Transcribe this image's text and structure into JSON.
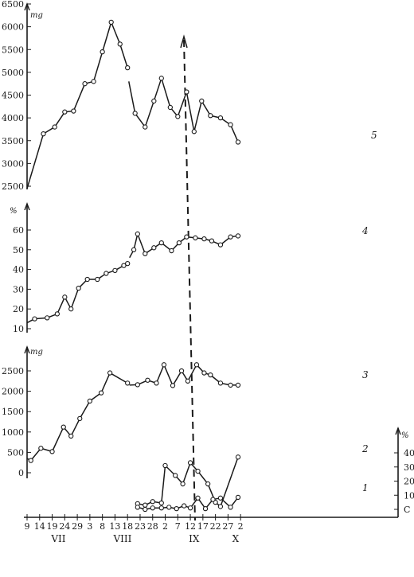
{
  "chart_data": {
    "type": "line",
    "x_axis": {
      "day_ticks": [
        "9",
        "14",
        "19",
        "24",
        "29",
        "3",
        "8",
        "13",
        "18",
        "23",
        "28",
        "2",
        "7",
        "12",
        "17",
        "22",
        "27",
        "2"
      ],
      "month_labels": [
        "VII",
        "VIII",
        "IX",
        "X"
      ]
    },
    "panels": [
      {
        "id": "p5",
        "unit": "mg",
        "ylim": [
          2500,
          6500
        ],
        "yticks": [
          2500,
          3000,
          3500,
          4000,
          4500,
          5000,
          5500,
          6000,
          6500
        ],
        "ytick_labels": [
          "2500",
          "3000",
          "3500",
          "4000",
          "4500",
          "5000",
          "5500",
          "6000",
          "6500"
        ],
        "series": [
          {
            "name": "5",
            "segments": [
              {
                "x": [
                  9,
                  15.5,
                  20,
                  24,
                  27.5,
                  32,
                  35.5,
                  39,
                  42.5,
                  46,
                  49
                ],
                "y": [
                  2450,
                  3650,
                  3800,
                  4130,
                  4150,
                  4750,
                  4800,
                  5450,
                  6100,
                  5620,
                  5100
                ],
                "markers_from": 1,
                "ends_open": true
              },
              {
                "x": [
                  49.5,
                  52,
                  56,
                  59.5,
                  62.5,
                  66,
                  69,
                  72.5,
                  75.5,
                  78.5,
                  82,
                  86,
                  90,
                  93
                ],
                "y": [
                  4800,
                  4100,
                  3800,
                  4370,
                  4870,
                  4230,
                  4030,
                  4570,
                  3700,
                  4370,
                  4050,
                  4000,
                  3850,
                  3470
                ],
                "markers_from": 1
              }
            ]
          }
        ]
      },
      {
        "id": "p4",
        "unit": "%",
        "ylim": [
          10,
          60
        ],
        "yticks": [
          10,
          20,
          30,
          40,
          50,
          60
        ],
        "ytick_labels": [
          "10",
          "20",
          "30",
          "40",
          "50",
          "60"
        ],
        "series": [
          {
            "name": "4",
            "segments": [
              {
                "x": [
                  9,
                  12,
                  17,
                  21,
                  24,
                  26.5,
                  29.5,
                  33,
                  37,
                  40.5,
                  44,
                  47.5,
                  49
                ],
                "y": [
                  13,
                  15,
                  15.5,
                  17.5,
                  26,
                  20,
                  30.5,
                  35,
                  35,
                  38,
                  39.5,
                  42,
                  43
                ],
                "markers_from": 1
              },
              {
                "x": [
                  49.8,
                  51.5,
                  53,
                  56,
                  59.5,
                  62.5,
                  66.5,
                  69.5,
                  72.5,
                  76,
                  79.5,
                  82.5,
                  86,
                  90,
                  93
                ],
                "y": [
                  46,
                  50,
                  58,
                  48,
                  51,
                  53.5,
                  49.5,
                  53.5,
                  56.5,
                  56,
                  55.5,
                  54.5,
                  52.5,
                  56.5,
                  57
                ],
                "markers_from": 1
              }
            ]
          }
        ]
      },
      {
        "id": "p3",
        "unit": "mg",
        "ylim": [
          0,
          2500
        ],
        "yticks": [
          0,
          500,
          1000,
          1500,
          2000,
          2500
        ],
        "ytick_labels": [
          "0",
          "500",
          "1000",
          "1500",
          "2000",
          "2500"
        ],
        "series": [
          {
            "name": "3",
            "segments": [
              {
                "x": [
                  9,
                  10.5,
                  14.5,
                  19,
                  23.5,
                  26.5,
                  30,
                  34,
                  38.5,
                  42,
                  49
                ],
                "y": [
                  350,
                  300,
                  600,
                  520,
                  1120,
                  900,
                  1330,
                  1760,
                  1960,
                  2450,
                  2200
                ],
                "markers_from": 1
              },
              {
                "x": [
                  49.8,
                  53,
                  57,
                  60.5,
                  63.5,
                  67,
                  70.5,
                  73,
                  76.5,
                  79.5,
                  82,
                  86,
                  90,
                  93
                ],
                "y": [
                  2150,
                  2160,
                  2270,
                  2200,
                  2650,
                  2140,
                  2500,
                  2250,
                  2650,
                  2450,
                  2400,
                  2200,
                  2150,
                  2150
                ],
                "markers_from": 1
              }
            ]
          }
        ]
      },
      {
        "id": "p12",
        "unit": "%",
        "ylim": [
          0,
          40
        ],
        "yticks": [
          0,
          10,
          20,
          30,
          40
        ],
        "ytick_labels": [
          "C",
          "10",
          "20",
          "30",
          "40"
        ],
        "series": [
          {
            "name": "2",
            "segments": [
              {
                "x": [
                  53,
                  56,
                  59,
                  62.5,
                  64,
                  68,
                  71,
                  74,
                  77,
                  81,
                  84,
                  86,
                  93
                ],
                "y": [
                  4,
                  3,
                  5.5,
                  4.5,
                  31,
                  24,
                  18,
                  33,
                  27,
                  18,
                  5,
                  2,
                  37
                ],
                "markers_from": 0
              }
            ]
          },
          {
            "name": "1",
            "segments": [
              {
                "x": [
                  53,
                  56,
                  59,
                  62.5,
                  65.5,
                  68.5,
                  71.5,
                  74,
                  77,
                  80,
                  83,
                  86,
                  90,
                  93
                ],
                "y": [
                  1.5,
                  0,
                  1,
                  1,
                  1.5,
                  0.5,
                  2.5,
                  1,
                  8,
                  0.5,
                  7,
                  8,
                  1.5,
                  8.5
                ],
                "markers_from": 0
              }
            ]
          }
        ]
      }
    ]
  }
}
